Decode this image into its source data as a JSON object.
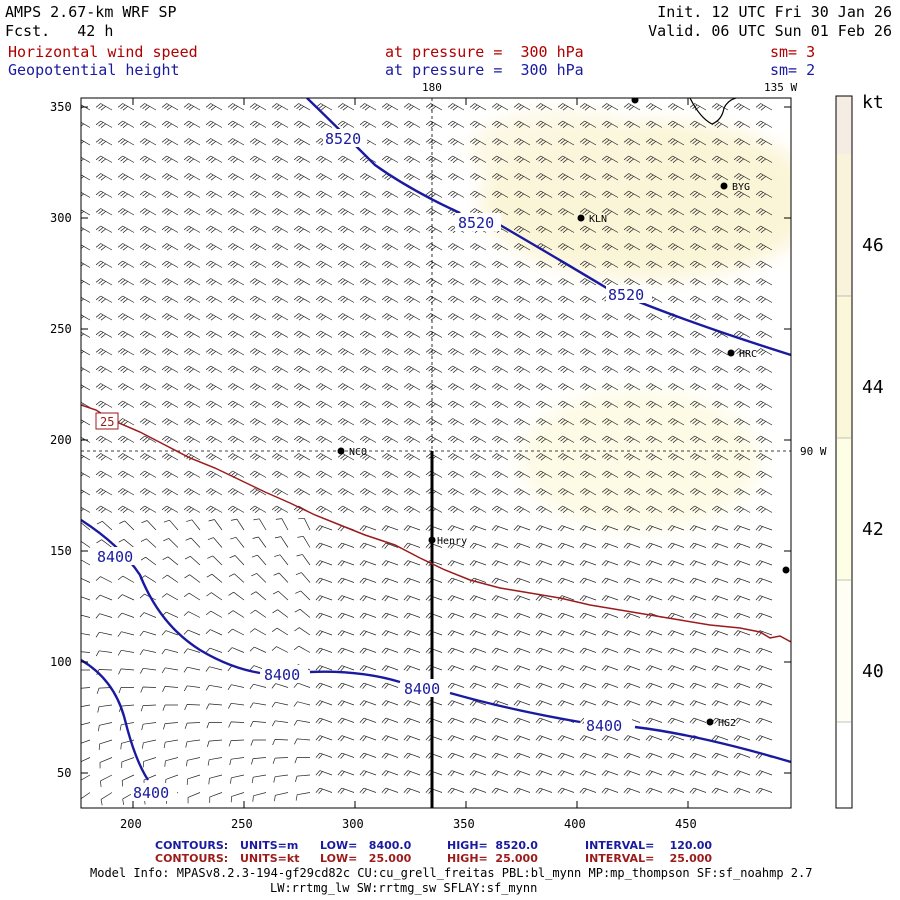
{
  "header": {
    "title": "AMPS 2.67-km WRF SP",
    "forecast": "Fcst.   42 h",
    "init": "Init. 12 UTC Fri 30 Jan 26",
    "valid": "Valid. 06 UTC Sun 01 Feb 26",
    "field1": "Horizontal wind speed",
    "field2": "Geopotential height",
    "level1": "at pressure =  300 hPa",
    "level2": "at pressure =  300 hPa",
    "sm1": "sm= 3",
    "sm2": "sm= 2"
  },
  "map": {
    "lon_180": "180",
    "lon_135w": "135 W",
    "lon_90w": "90 W",
    "stations": [
      "BYG",
      "KLN",
      "HRC",
      "NCO",
      "Henry",
      "HG2"
    ],
    "contour_labels": {
      "c8520_a": "8520",
      "c8520_b": "8520",
      "c8520_c": "8520",
      "c8400_a": "8400",
      "c8400_b": "8400",
      "c8400_c": "8400",
      "c8400_d": "8400",
      "c8400_e": "8400",
      "c25": "25"
    },
    "x_ticks": [
      "200",
      "250",
      "300",
      "350",
      "400",
      "450"
    ],
    "y_ticks": [
      "350",
      "300",
      "250",
      "200",
      "150",
      "100",
      "50"
    ]
  },
  "colorbar": {
    "unit": "kt",
    "labels": [
      "46",
      "44",
      "42",
      "40"
    ],
    "colors": [
      "#f5ede3",
      "#f9f3dc",
      "#fbf8da",
      "#fefde6",
      "#fefef4",
      "#ffffff"
    ]
  },
  "footer": {
    "contours_lbl": "CONTOURS:",
    "row1_units": "UNITS=m",
    "row1_low": "LOW=   8400.0",
    "row1_high": "HIGH=  8520.0",
    "row1_interval": "INTERVAL=    120.00",
    "row2_units": "UNITS=kt",
    "row2_low": "LOW=   25.000",
    "row2_high": "HIGH=  25.000",
    "row2_interval": "INTERVAL=    25.000",
    "model_info": "Model Info: MPASv8.2.3-194-gf29cd82c CU:cu_grell_freitas PBL:bl_mynn MP:mp_thompson SF:sf_noahmp 2.7",
    "model_info2": "LW:rrtmg_lw SW:rrtmg_sw SFLAY:sf_mynn"
  },
  "colors": {
    "height_contour": "#1a1aa0",
    "speed_contour": "#9b1b1b",
    "barb": "#222222"
  }
}
